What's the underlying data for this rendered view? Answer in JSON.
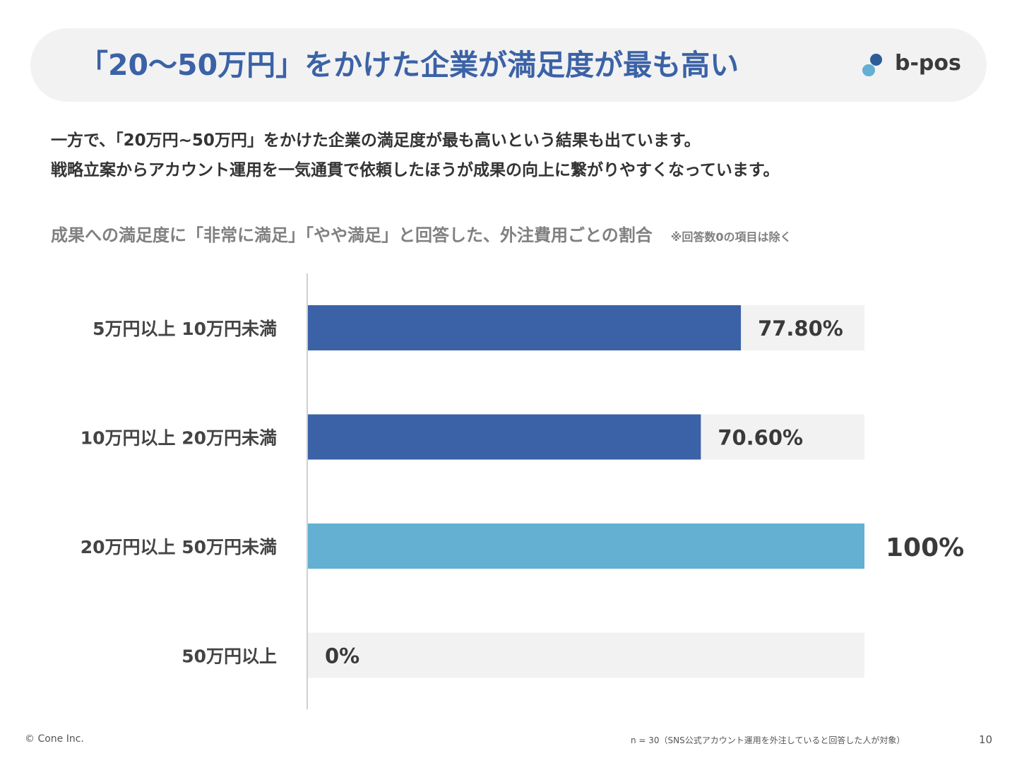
{
  "header": {
    "title": "「20〜50万円」をかけた企業が満足度が最も高い",
    "logo_text": "b-pos"
  },
  "description": {
    "line1": "一方で、「20万円~50万円」をかけた企業の満足度が最も高いという結果も出ています。",
    "line2": "戦略立案からアカウント運用を一気通貫で依頼したほうが成果の向上に繋がりやすくなっています。"
  },
  "chart_caption": {
    "main": "成果への満足度に「非常に満足」「やや満足」と回答した、外注費用ごとの割合",
    "note": "※回答数0の項目は除く"
  },
  "chart_data": {
    "type": "bar",
    "orientation": "horizontal",
    "title": "",
    "xlabel": "",
    "ylabel": "",
    "xlim": [
      0,
      100
    ],
    "unit": "%",
    "categories": [
      "5万円以上 10万円未満",
      "10万円以上 20万円未満",
      "20万円以上 50万円未満",
      "50万円以上"
    ],
    "values": [
      77.8,
      70.6,
      100,
      0
    ],
    "value_labels": [
      "77.80%",
      "70.60%",
      "100%",
      "0%"
    ],
    "highlight_index": 2,
    "grid": false,
    "legend": "none"
  },
  "colors": {
    "title": "#3b62a6",
    "bar": "#3b62a6",
    "bar_highlight": "#63b0d3",
    "bar_track": "#f2f2f3",
    "axis_line": "#cfcfcf",
    "label_text": "#444444",
    "logo_dark": "#2d5d96",
    "logo_light": "#63b0d3"
  },
  "footer": {
    "copyright": "© Cone Inc.",
    "note": "n = 30（SNS公式アカウント運用を外注していると回答した人が対象）",
    "page": "10"
  }
}
